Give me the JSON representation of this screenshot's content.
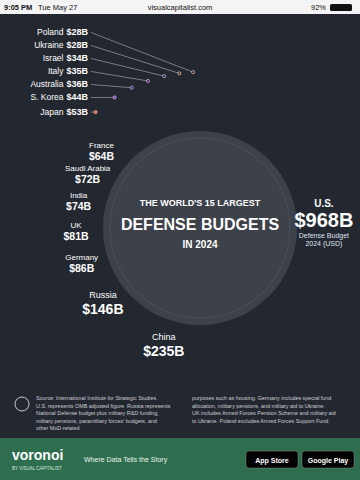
{
  "status_bar": {
    "time": "9:05 PM",
    "date": "Tue May 27",
    "url": "visualcapitalist.com",
    "battery": "92%"
  },
  "chart_data": {
    "type": "donut",
    "title": [
      "THE WORLD'S 15 LARGEST",
      "DEFENSE BUDGETS",
      "IN 2024"
    ],
    "categories": [
      "U.S.",
      "China",
      "Russia",
      "Germany",
      "UK",
      "India",
      "Saudi Arabia",
      "France",
      "Japan",
      "S. Korea",
      "Australia",
      "Italy",
      "Israel",
      "Ukraine",
      "Poland"
    ],
    "values": [
      968,
      235,
      146,
      86,
      81,
      74,
      72,
      64,
      53,
      44,
      36,
      35,
      34,
      28,
      28
    ],
    "value_labels": [
      "$968B",
      "$235B",
      "$146B",
      "$86B",
      "$81B",
      "$74B",
      "$72B",
      "$64B",
      "$53B",
      "$44B",
      "$36B",
      "$35B",
      "$34B",
      "$28B",
      "$28B"
    ],
    "colors": [
      "#2b3a96",
      "#d62a2a",
      "#2f66c9",
      "#e0711d",
      "#d42f6d",
      "#ee8e23",
      "#24874f",
      "#3a9ad9",
      "#e4572e",
      "#7140a6",
      "#2a3183",
      "#5b2570",
      "#3f2458",
      "#5d3a26",
      "#4b2a1e"
    ],
    "data_labels": true,
    "annotations": [
      "Defense Budget",
      "2024 (USD)"
    ]
  },
  "source": {
    "left": [
      "Source: International Institute for Strategic Studies.",
      "U.S. represents OMB adjusted figure. Russia represents",
      "National Defense budget plus military R&D funding,",
      "military pensions, paramilitary forces' budgets, and",
      "other MoD-related"
    ],
    "right": [
      "purposes such as housing. Germany includes special fund",
      "allocation, military pensions, and military aid to Ukraine.",
      "UK includes Armed Forces Pension Scheme and military aid",
      "to Ukraine. Poland excludes Armed Forces Support Fund."
    ]
  },
  "footer": {
    "brand": "voronoi",
    "byline": "BY VISUAL CAPITALIST",
    "tagline": "Where Data Tells the Story",
    "badges": [
      "App Store",
      "Google Play"
    ]
  }
}
